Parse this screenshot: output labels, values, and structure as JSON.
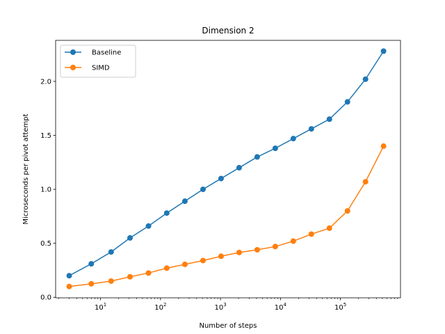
{
  "chart_data": {
    "type": "line",
    "title": "Dimension 2",
    "xlabel": "Number of steps",
    "ylabel": "Microseconds per pivot attempt",
    "xscale": "log",
    "xlim": [
      1.78,
      1005000
    ],
    "ylim": [
      -0.005,
      2.38
    ],
    "x": [
      3,
      7,
      15,
      31,
      63,
      127,
      255,
      511,
      1023,
      2047,
      4095,
      8191,
      16383,
      32767,
      65535,
      131071,
      262143,
      524287
    ],
    "x_ticks": [
      {
        "value": 10,
        "base": "10",
        "exp": "1"
      },
      {
        "value": 100,
        "base": "10",
        "exp": "2"
      },
      {
        "value": 1000,
        "base": "10",
        "exp": "3"
      },
      {
        "value": 10000,
        "base": "10",
        "exp": "4"
      },
      {
        "value": 100000,
        "base": "10",
        "exp": "5"
      }
    ],
    "y_ticks": [
      {
        "value": 0.0,
        "label": "0.0"
      },
      {
        "value": 0.5,
        "label": "0.5"
      },
      {
        "value": 1.0,
        "label": "1.0"
      },
      {
        "value": 1.5,
        "label": "1.5"
      },
      {
        "value": 2.0,
        "label": "2.0"
      }
    ],
    "series": [
      {
        "name": "Baseline",
        "color": "#1f77b4",
        "values": [
          0.2,
          0.31,
          0.42,
          0.55,
          0.66,
          0.78,
          0.89,
          1.0,
          1.1,
          1.2,
          1.3,
          1.38,
          1.47,
          1.56,
          1.65,
          1.81,
          2.02,
          2.28
        ]
      },
      {
        "name": "SIMD",
        "color": "#ff7f0e",
        "values": [
          0.1,
          0.125,
          0.15,
          0.19,
          0.225,
          0.27,
          0.305,
          0.34,
          0.38,
          0.415,
          0.44,
          0.47,
          0.52,
          0.585,
          0.64,
          0.8,
          1.07,
          1.4
        ]
      }
    ],
    "grid": false,
    "legend_position": "upper-left"
  }
}
